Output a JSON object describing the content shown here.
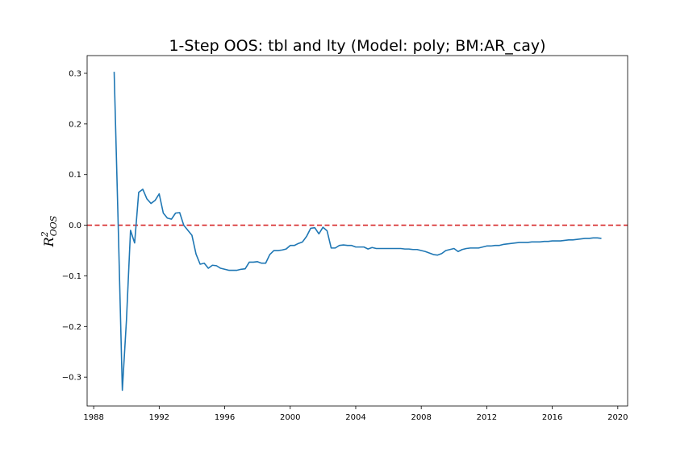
{
  "chart_data": {
    "type": "line",
    "title": "1-Step OOS: tbl and lty (Model: poly; BM:AR_cay)",
    "ylabel": "R",
    "ylabel_superscript": "2",
    "ylabel_subscript": "OOS",
    "xlabel": "",
    "xlim": [
      1987.6,
      2020.6
    ],
    "ylim": [
      -0.357,
      0.335
    ],
    "x_ticks": [
      1988,
      1992,
      1996,
      2000,
      2004,
      2008,
      2012,
      2016,
      2020
    ],
    "x_tick_labels": [
      "1988",
      "1992",
      "1996",
      "2000",
      "2004",
      "2008",
      "2012",
      "2016",
      "2020"
    ],
    "y_ticks": [
      0.3,
      0.2,
      0.1,
      0.0,
      -0.1,
      -0.2,
      -0.3
    ],
    "y_tick_labels": [
      "0.3",
      "0.2",
      "0.1",
      "0.0",
      "−0.1",
      "−0.2",
      "−0.3"
    ],
    "reference_line": {
      "y": 0.0,
      "color": "#d62728",
      "style": "dashed"
    },
    "grid": false,
    "series": [
      {
        "color": "#1f77b4",
        "x": [
          1989.25,
          1989.5,
          1989.75,
          1990.0,
          1990.25,
          1990.5,
          1990.75,
          1991.0,
          1991.25,
          1991.5,
          1991.75,
          1992.0,
          1992.25,
          1992.5,
          1992.75,
          1993.0,
          1993.25,
          1993.5,
          1993.75,
          1994.0,
          1994.25,
          1994.5,
          1994.75,
          1995.0,
          1995.25,
          1995.5,
          1995.75,
          1996.0,
          1996.25,
          1996.5,
          1996.75,
          1997.0,
          1997.25,
          1997.5,
          1997.75,
          1998.0,
          1998.25,
          1998.5,
          1998.75,
          1999.0,
          1999.25,
          1999.5,
          1999.75,
          2000.0,
          2000.25,
          2000.5,
          2000.75,
          2001.0,
          2001.25,
          2001.5,
          2001.75,
          2002.0,
          2002.25,
          2002.5,
          2002.75,
          2003.0,
          2003.25,
          2003.5,
          2003.75,
          2004.0,
          2004.25,
          2004.5,
          2004.75,
          2005.0,
          2005.25,
          2005.5,
          2005.75,
          2006.0,
          2006.25,
          2006.5,
          2006.75,
          2007.0,
          2007.25,
          2007.5,
          2007.75,
          2008.0,
          2008.25,
          2008.5,
          2008.75,
          2009.0,
          2009.25,
          2009.5,
          2009.75,
          2010.0,
          2010.25,
          2010.5,
          2010.75,
          2011.0,
          2011.25,
          2011.5,
          2011.75,
          2012.0,
          2012.25,
          2012.5,
          2012.75,
          2013.0,
          2013.25,
          2013.5,
          2013.75,
          2014.0,
          2014.25,
          2014.5,
          2014.75,
          2015.0,
          2015.25,
          2015.5,
          2015.75,
          2016.0,
          2016.25,
          2016.5,
          2016.75,
          2017.0,
          2017.25,
          2017.5,
          2017.75,
          2018.0,
          2018.25,
          2018.5,
          2018.75,
          2019.0
        ],
        "y": [
          0.303,
          -0.003,
          -0.326,
          -0.188,
          -0.01,
          -0.035,
          0.065,
          0.071,
          0.052,
          0.043,
          0.049,
          0.062,
          0.024,
          0.014,
          0.012,
          0.024,
          0.025,
          0.0,
          -0.01,
          -0.02,
          -0.057,
          -0.077,
          -0.075,
          -0.085,
          -0.079,
          -0.08,
          -0.085,
          -0.087,
          -0.089,
          -0.089,
          -0.089,
          -0.087,
          -0.086,
          -0.073,
          -0.073,
          -0.072,
          -0.075,
          -0.075,
          -0.058,
          -0.05,
          -0.05,
          -0.049,
          -0.047,
          -0.04,
          -0.04,
          -0.036,
          -0.033,
          -0.022,
          -0.006,
          -0.005,
          -0.017,
          -0.004,
          -0.011,
          -0.045,
          -0.045,
          -0.04,
          -0.039,
          -0.04,
          -0.04,
          -0.043,
          -0.043,
          -0.043,
          -0.047,
          -0.044,
          -0.046,
          -0.046,
          -0.046,
          -0.046,
          -0.046,
          -0.046,
          -0.046,
          -0.047,
          -0.047,
          -0.048,
          -0.048,
          -0.05,
          -0.052,
          -0.055,
          -0.058,
          -0.059,
          -0.056,
          -0.05,
          -0.048,
          -0.046,
          -0.052,
          -0.048,
          -0.046,
          -0.045,
          -0.045,
          -0.045,
          -0.043,
          -0.041,
          -0.041,
          -0.04,
          -0.04,
          -0.038,
          -0.037,
          -0.036,
          -0.035,
          -0.034,
          -0.034,
          -0.034,
          -0.033,
          -0.033,
          -0.033,
          -0.032,
          -0.032,
          -0.031,
          -0.031,
          -0.031,
          -0.03,
          -0.029,
          -0.029,
          -0.028,
          -0.027,
          -0.026,
          -0.026,
          -0.025,
          -0.025,
          -0.026
        ]
      }
    ]
  }
}
